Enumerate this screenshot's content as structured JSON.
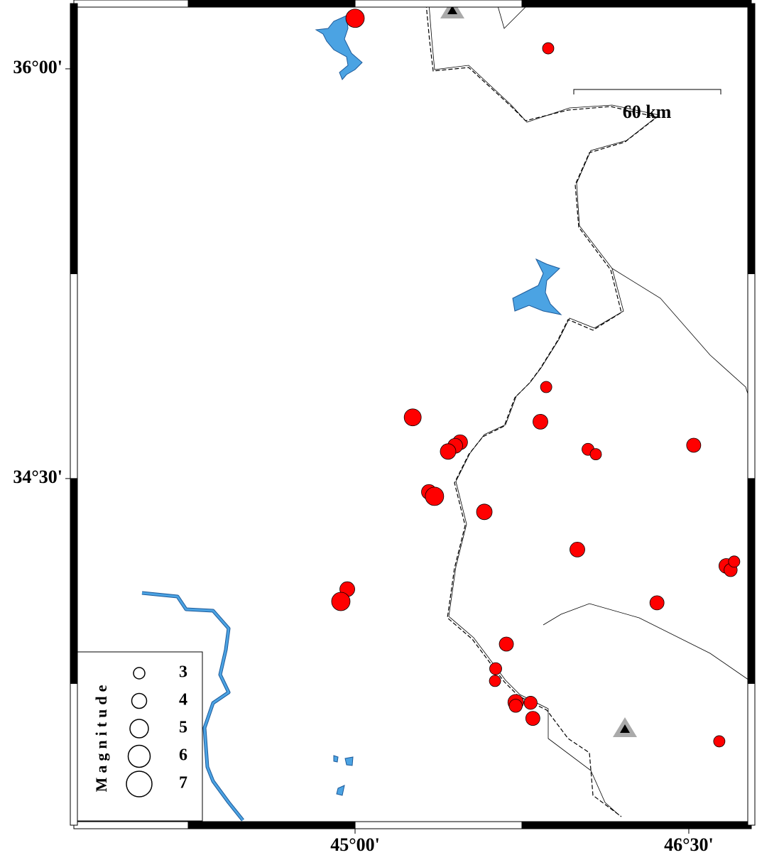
{
  "map": {
    "xlim": [
      43.736,
      46.781
    ],
    "ylim": [
      33.231,
      36.239
    ],
    "xticks": [
      {
        "value": 45,
        "label": "45°00'"
      },
      {
        "value": 46.5,
        "label": "46°30'"
      }
    ],
    "yticks": [
      {
        "value": 36,
        "label": "36°00'"
      },
      {
        "value": 34.5,
        "label": "34°30'"
      }
    ],
    "event_color": "#ff0000",
    "events": [
      {
        "lon": 45.0,
        "lat": 36.185,
        "magnitude": 5.0
      },
      {
        "lon": 45.868,
        "lat": 36.075,
        "magnitude": 3.0
      },
      {
        "lon": 45.859,
        "lat": 34.835,
        "magnitude": 3.0
      },
      {
        "lon": 45.259,
        "lat": 34.724,
        "magnitude": 4.6
      },
      {
        "lon": 45.833,
        "lat": 34.708,
        "magnitude": 4.0
      },
      {
        "lon": 45.472,
        "lat": 34.633,
        "magnitude": 4.0
      },
      {
        "lon": 45.45,
        "lat": 34.62,
        "magnitude": 4.0
      },
      {
        "lon": 45.418,
        "lat": 34.599,
        "magnitude": 4.2
      },
      {
        "lon": 46.047,
        "lat": 34.607,
        "magnitude": 3.2
      },
      {
        "lon": 46.082,
        "lat": 34.589,
        "magnitude": 3.0
      },
      {
        "lon": 46.522,
        "lat": 34.622,
        "magnitude": 3.8
      },
      {
        "lon": 45.332,
        "lat": 34.451,
        "magnitude": 4.0
      },
      {
        "lon": 45.357,
        "lat": 34.435,
        "magnitude": 5.0
      },
      {
        "lon": 45.581,
        "lat": 34.378,
        "magnitude": 4.2
      },
      {
        "lon": 45.999,
        "lat": 34.24,
        "magnitude": 4.0
      },
      {
        "lon": 46.669,
        "lat": 34.18,
        "magnitude": 4.0
      },
      {
        "lon": 46.688,
        "lat": 34.165,
        "magnitude": 3.5
      },
      {
        "lon": 46.704,
        "lat": 34.196,
        "magnitude": 3.0
      },
      {
        "lon": 44.965,
        "lat": 34.095,
        "magnitude": 4.0
      },
      {
        "lon": 44.936,
        "lat": 34.05,
        "magnitude": 5.0
      },
      {
        "lon": 46.357,
        "lat": 34.045,
        "magnitude": 3.8
      },
      {
        "lon": 45.68,
        "lat": 33.894,
        "magnitude": 3.8
      },
      {
        "lon": 45.632,
        "lat": 33.804,
        "magnitude": 3.2
      },
      {
        "lon": 45.629,
        "lat": 33.759,
        "magnitude": 3.0
      },
      {
        "lon": 45.722,
        "lat": 33.681,
        "magnitude": 4.2
      },
      {
        "lon": 45.722,
        "lat": 33.668,
        "magnitude": 3.5
      },
      {
        "lon": 45.789,
        "lat": 33.679,
        "magnitude": 3.5
      },
      {
        "lon": 45.799,
        "lat": 33.622,
        "magnitude": 3.8
      },
      {
        "lon": 46.637,
        "lat": 33.538,
        "magnitude": 3.0
      }
    ],
    "scale_bar": {
      "label": "60 km"
    },
    "legend": {
      "title": "Magnitude",
      "magnitudes": [
        3,
        4,
        5,
        6,
        7
      ]
    }
  }
}
